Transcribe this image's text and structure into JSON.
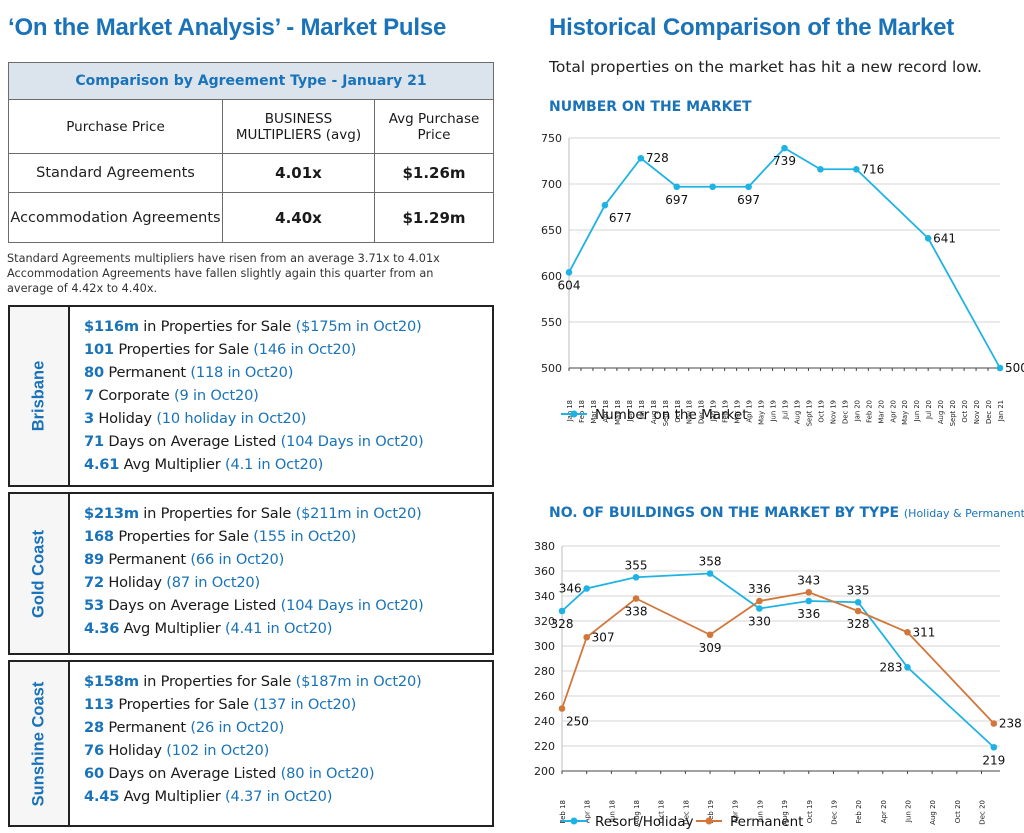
{
  "left_title": "‘On the Market Analysis’ - Market Pulse",
  "right_title": "Historical Comparison of the Market",
  "right_subtitle": "Total properties on the market has hit a new record low.",
  "comparison": {
    "caption": "Comparison by Agreement Type - January 21",
    "headers": [
      "Purchase Price",
      "BUSINESS MULTIPLIERS (avg)",
      "Avg Purchase Price"
    ],
    "rows": [
      {
        "label": "Standard Agreements",
        "multiplier": "4.01x",
        "price": "$1.26m"
      },
      {
        "label": "Accommodation Agreements",
        "multiplier": "4.40x",
        "price": "$1.29m"
      }
    ]
  },
  "note": "Standard Agreements multipliers have risen from an average 3.71x to 4.01x Accommodation Agreements have fallen slightly again this quarter from an average of 4.42x to 4.40x.",
  "regions": [
    {
      "name": "Brisbane",
      "lines": [
        {
          "num": "$116m",
          "text": " in Properties for Sale ",
          "cmp": "($175m in Oct20)"
        },
        {
          "num": "101",
          "text": " Properties for Sale ",
          "cmp": "(146 in Oct20)"
        },
        {
          "num": "80",
          "text": " Permanent ",
          "cmp": "(118 in Oct20)"
        },
        {
          "num": "7",
          "text": " Corporate ",
          "cmp": "(9 in Oct20)"
        },
        {
          "num": "3",
          "text": " Holiday ",
          "cmp": "(10 holiday in Oct20)"
        },
        {
          "num": "71",
          "text": " Days on Average Listed ",
          "cmp": "(104 Days in Oct20)"
        },
        {
          "num": "4.61",
          "text": " Avg Multiplier ",
          "cmp": "(4.1 in Oct20)"
        }
      ]
    },
    {
      "name": "Gold Coast",
      "lines": [
        {
          "num": "$213m",
          "text": " in Properties for Sale ",
          "cmp": "($211m in Oct20)"
        },
        {
          "num": "168",
          "text": " Properties for Sale ",
          "cmp": "(155 in Oct20)"
        },
        {
          "num": "89",
          "text": " Permanent ",
          "cmp": "(66 in Oct20)"
        },
        {
          "num": "72",
          "text": " Holiday ",
          "cmp": "(87 in Oct20)"
        },
        {
          "num": "53",
          "text": " Days on Average Listed ",
          "cmp": "(104 Days in Oct20)"
        },
        {
          "num": "4.36",
          "text": " Avg Multiplier ",
          "cmp": "(4.41 in Oct20)"
        }
      ]
    },
    {
      "name": "Sunshine Coast",
      "lines": [
        {
          "num": "$158m",
          "text": " in Properties for Sale ",
          "cmp": "($187m in Oct20)"
        },
        {
          "num": "113",
          "text": " Properties for Sale ",
          "cmp": "(137 in Oct20)"
        },
        {
          "num": "28",
          "text": " Permanent ",
          "cmp": "(26 in Oct20)"
        },
        {
          "num": "76",
          "text": " Holiday ",
          "cmp": "(102 in Oct20)"
        },
        {
          "num": "60",
          "text": " Days on Average Listed ",
          "cmp": "(80 in Oct20)"
        },
        {
          "num": "4.45",
          "text": " Avg Multiplier ",
          "cmp": "(4.37 in Oct20)"
        }
      ]
    }
  ],
  "colors": {
    "accent": "#1a73b8",
    "series_blue": "#1fb3e3",
    "series_orange": "#d2763a"
  },
  "chart_data": [
    {
      "type": "line",
      "title": "NUMBER ON THE MARKET",
      "ylim": [
        500,
        750
      ],
      "yticks": [
        500,
        550,
        600,
        650,
        700,
        750
      ],
      "grid": true,
      "legend_position": "bottom-left",
      "x_ticks": [
        "Jan 18",
        "Feb 18",
        "Mar 18",
        "Apr 18",
        "May 18",
        "Jun 18",
        "Jul 18",
        "Aug 18",
        "Sept 18",
        "Oct 18",
        "Nov 18",
        "Dec 18",
        "Jan 19",
        "Feb 19",
        "Mar 19",
        "Apr 19",
        "May 19",
        "Jun 19",
        "Jul 19",
        "Aug 19",
        "Sept 19",
        "Oct 19",
        "Nov 19",
        "Dec 19",
        "Jan 20",
        "Feb 20",
        "Mar 20",
        "Apr 20",
        "May 20",
        "Jun 20",
        "Jul 20",
        "Aug 20",
        "Sept 20",
        "Oct 20",
        "Nov 20",
        "Dec 20",
        "Jan 21"
      ],
      "series": [
        {
          "name": "Number on the Market",
          "color": "#1fb3e3",
          "points": [
            {
              "x": "Jan 18",
              "y": 604
            },
            {
              "x": "Apr 18",
              "y": 677
            },
            {
              "x": "Jul 18",
              "y": 728
            },
            {
              "x": "Oct 18",
              "y": 697
            },
            {
              "x": "Jan 19",
              "y": 697
            },
            {
              "x": "Apr 19",
              "y": 697
            },
            {
              "x": "Jul 19",
              "y": 739
            },
            {
              "x": "Oct 19",
              "y": 716
            },
            {
              "x": "Jan 20",
              "y": 716
            },
            {
              "x": "Jul 20",
              "y": 641
            },
            {
              "x": "Jan 21",
              "y": 500
            }
          ]
        }
      ],
      "data_labels": [
        {
          "x": "Jan 18",
          "y": 604,
          "text": "604",
          "pos": "below"
        },
        {
          "x": "Apr 18",
          "y": 677,
          "text": "677",
          "pos": "below-right"
        },
        {
          "x": "Jul 18",
          "y": 728,
          "text": "728",
          "pos": "right"
        },
        {
          "x": "Oct 18",
          "y": 697,
          "text": "697",
          "pos": "below"
        },
        {
          "x": "Apr 19",
          "y": 697,
          "text": "697",
          "pos": "below"
        },
        {
          "x": "Jul 19",
          "y": 739,
          "text": "739",
          "pos": "below"
        },
        {
          "x": "Jan 20",
          "y": 716,
          "text": "716",
          "pos": "right"
        },
        {
          "x": "Jul 20",
          "y": 641,
          "text": "641",
          "pos": "right"
        },
        {
          "x": "Jan 21",
          "y": 500,
          "text": "500",
          "pos": "right"
        }
      ]
    },
    {
      "type": "line",
      "title": "NO. OF BUILDINGS ON THE MARKET BY TYPE",
      "title_suffix": "(Holiday & Permanent)",
      "ylim": [
        200,
        380
      ],
      "yticks": [
        200,
        220,
        240,
        260,
        280,
        300,
        320,
        340,
        360,
        380
      ],
      "grid": true,
      "legend_position": "bottom",
      "x_ticks": [
        "Feb 18",
        "Apr 18",
        "Jun 18",
        "Aug 18",
        "Oct 18",
        "Dec 18",
        "Feb 19",
        "Apr 19",
        "Jun 19",
        "Aug 19",
        "Oct 19",
        "Dec 19",
        "Feb 20",
        "Apr 20",
        "Jun 20",
        "Aug 20",
        "Oct 20",
        "Dec 20"
      ],
      "series": [
        {
          "name": "Resort/Holiday",
          "color": "#1fb3e3",
          "points": [
            {
              "x": "Feb 18",
              "y": 328
            },
            {
              "x": "Apr 18",
              "y": 346
            },
            {
              "x": "Aug 18",
              "y": 355
            },
            {
              "x": "Feb 19",
              "y": 358
            },
            {
              "x": "Jun 19",
              "y": 330
            },
            {
              "x": "Oct 19",
              "y": 336
            },
            {
              "x": "Feb 20",
              "y": 335
            },
            {
              "x": "Jun 20",
              "y": 283
            },
            {
              "x": "Jan 21",
              "y": 219
            }
          ]
        },
        {
          "name": "Permanent",
          "color": "#d2763a",
          "points": [
            {
              "x": "Feb 18",
              "y": 250
            },
            {
              "x": "Apr 18",
              "y": 307
            },
            {
              "x": "Aug 18",
              "y": 338
            },
            {
              "x": "Feb 19",
              "y": 309
            },
            {
              "x": "Jun 19",
              "y": 336
            },
            {
              "x": "Oct 19",
              "y": 343
            },
            {
              "x": "Feb 20",
              "y": 328
            },
            {
              "x": "Jun 20",
              "y": 311
            },
            {
              "x": "Jan 21",
              "y": 238
            }
          ]
        }
      ],
      "data_labels": [
        {
          "x": "Feb 18",
          "y": 328,
          "text": "328",
          "pos": "below"
        },
        {
          "x": "Apr 18",
          "y": 346,
          "text": "346",
          "pos": "left"
        },
        {
          "x": "Aug 18",
          "y": 355,
          "text": "355",
          "pos": "above"
        },
        {
          "x": "Feb 19",
          "y": 358,
          "text": "358",
          "pos": "above"
        },
        {
          "x": "Jun 19",
          "y": 330,
          "text": "330",
          "pos": "below"
        },
        {
          "x": "Oct 19",
          "y": 336,
          "text": "336",
          "pos": "below"
        },
        {
          "x": "Feb 20",
          "y": 335,
          "text": "335",
          "pos": "above"
        },
        {
          "x": "Jun 20",
          "y": 283,
          "text": "283",
          "pos": "left"
        },
        {
          "x": "Jan 21",
          "y": 219,
          "text": "219",
          "pos": "below"
        },
        {
          "x": "Feb 18",
          "y": 250,
          "text": "250",
          "pos": "below-right"
        },
        {
          "x": "Apr 18",
          "y": 307,
          "text": "307",
          "pos": "right"
        },
        {
          "x": "Aug 18",
          "y": 338,
          "text": "338",
          "pos": "below"
        },
        {
          "x": "Feb 19",
          "y": 309,
          "text": "309",
          "pos": "below"
        },
        {
          "x": "Jun 19",
          "y": 336,
          "text": "336",
          "pos": "above"
        },
        {
          "x": "Oct 19",
          "y": 343,
          "text": "343",
          "pos": "above"
        },
        {
          "x": "Feb 20",
          "y": 328,
          "text": "328",
          "pos": "below"
        },
        {
          "x": "Jun 20",
          "y": 311,
          "text": "311",
          "pos": "right"
        },
        {
          "x": "Jan 21",
          "y": 238,
          "text": "238",
          "pos": "right"
        }
      ]
    }
  ]
}
